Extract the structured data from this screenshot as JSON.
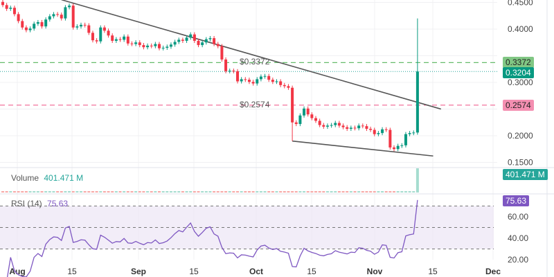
{
  "chart_data": {
    "type": "candlestick",
    "price_axis": {
      "ticks": [
        "0.4500",
        "0.4000",
        "0.3000",
        "0.2000",
        "0.1500"
      ],
      "range": [
        0.15,
        0.45
      ]
    },
    "time_axis": {
      "ticks": [
        "Aug",
        "15",
        "Sep",
        "15",
        "Oct",
        "15",
        "Nov",
        "15",
        "Dec"
      ]
    },
    "colors": {
      "up": "#089981",
      "down": "#f23645",
      "rsi": "#7e57c2",
      "trendline": "#555555"
    },
    "horizontal_lines": [
      {
        "label": "$0.3372",
        "value": 0.3372,
        "axis_label": "0.3372",
        "color": "#66bb6a",
        "style": "dashed"
      },
      {
        "label": "$0.2574",
        "value": 0.2574,
        "axis_label": "0.2574",
        "color": "#f06292",
        "style": "dashed"
      }
    ],
    "last_price": {
      "value": 0.3204,
      "axis_label": "0.3204",
      "color": "#089981"
    },
    "trendlines": [
      {
        "from": [
          "Aug 13",
          0.455
        ],
        "to": [
          "Nov 18",
          0.25
        ]
      },
      {
        "from": [
          "Oct 11",
          0.19
        ],
        "to": [
          "Nov 16",
          0.162
        ]
      }
    ],
    "candles": [
      [
        "Jul 29",
        0.445
      ],
      [
        "Jul 30",
        0.438
      ],
      [
        "Jul 31",
        0.44
      ],
      [
        "Aug 1",
        0.428
      ],
      [
        "Aug 2",
        0.415
      ],
      [
        "Aug 3",
        0.403
      ],
      [
        "Aug 4",
        0.398
      ],
      [
        "Aug 5",
        0.401
      ],
      [
        "Aug 6",
        0.41
      ],
      [
        "Aug 7",
        0.413
      ],
      [
        "Aug 8",
        0.405
      ],
      [
        "Aug 9",
        0.418
      ],
      [
        "Aug 10",
        0.424
      ],
      [
        "Aug 11",
        0.428
      ],
      [
        "Aug 12",
        0.427
      ],
      [
        "Aug 13",
        0.42
      ],
      [
        "Aug 14",
        0.441
      ],
      [
        "Aug 15",
        0.444
      ],
      [
        "Aug 16",
        0.403
      ],
      [
        "Aug 17",
        0.405
      ],
      [
        "Aug 18",
        0.408
      ],
      [
        "Aug 19",
        0.407
      ],
      [
        "Aug 20",
        0.393
      ],
      [
        "Aug 21",
        0.379
      ],
      [
        "Aug 22",
        0.377
      ],
      [
        "Aug 23",
        0.403
      ],
      [
        "Aug 24",
        0.397
      ],
      [
        "Aug 25",
        0.388
      ],
      [
        "Aug 26",
        0.378
      ],
      [
        "Aug 27",
        0.381
      ],
      [
        "Aug 28",
        0.38
      ],
      [
        "Aug 29",
        0.386
      ],
      [
        "Aug 30",
        0.373
      ],
      [
        "Aug 31",
        0.372
      ],
      [
        "Sep 1",
        0.375
      ],
      [
        "Sep 2",
        0.37
      ],
      [
        "Sep 3",
        0.366
      ],
      [
        "Sep 4",
        0.369
      ],
      [
        "Sep 5",
        0.368
      ],
      [
        "Sep 6",
        0.372
      ],
      [
        "Sep 7",
        0.364
      ],
      [
        "Sep 8",
        0.365
      ],
      [
        "Sep 9",
        0.367
      ],
      [
        "Sep 10",
        0.371
      ],
      [
        "Sep 11",
        0.376
      ],
      [
        "Sep 12",
        0.38
      ],
      [
        "Sep 13",
        0.378
      ],
      [
        "Sep 14",
        0.384
      ],
      [
        "Sep 15",
        0.39
      ],
      [
        "Sep 16",
        0.378
      ],
      [
        "Sep 17",
        0.37
      ],
      [
        "Sep 18",
        0.375
      ],
      [
        "Sep 19",
        0.381
      ],
      [
        "Sep 20",
        0.383
      ],
      [
        "Sep 21",
        0.372
      ],
      [
        "Sep 22",
        0.368
      ],
      [
        "Sep 23",
        0.343
      ],
      [
        "Sep 24",
        0.321
      ],
      [
        "Sep 25",
        0.322
      ],
      [
        "Sep 26",
        0.321
      ],
      [
        "Sep 27",
        0.302
      ],
      [
        "Sep 28",
        0.306
      ],
      [
        "Sep 29",
        0.305
      ],
      [
        "Sep 30",
        0.301
      ],
      [
        "Oct 1",
        0.298
      ],
      [
        "Oct 2",
        0.306
      ],
      [
        "Oct 3",
        0.311
      ],
      [
        "Oct 4",
        0.312
      ],
      [
        "Oct 5",
        0.305
      ],
      [
        "Oct 6",
        0.301
      ],
      [
        "Oct 7",
        0.302
      ],
      [
        "Oct 8",
        0.295
      ],
      [
        "Oct 9",
        0.293
      ],
      [
        "Oct 10",
        0.29
      ],
      [
        "Oct 11",
        0.225
      ],
      [
        "Oct 12",
        0.222
      ],
      [
        "Oct 13",
        0.238
      ],
      [
        "Oct 14",
        0.251
      ],
      [
        "Oct 15",
        0.24
      ],
      [
        "Oct 16",
        0.233
      ],
      [
        "Oct 17",
        0.228
      ],
      [
        "Oct 18",
        0.22
      ],
      [
        "Oct 19",
        0.217
      ],
      [
        "Oct 20",
        0.219
      ],
      [
        "Oct 21",
        0.22
      ],
      [
        "Oct 22",
        0.224
      ],
      [
        "Oct 23",
        0.219
      ],
      [
        "Oct 24",
        0.216
      ],
      [
        "Oct 25",
        0.213
      ],
      [
        "Oct 26",
        0.215
      ],
      [
        "Oct 27",
        0.214
      ],
      [
        "Oct 28",
        0.219
      ],
      [
        "Oct 29",
        0.218
      ],
      [
        "Oct 30",
        0.213
      ],
      [
        "Oct 31",
        0.211
      ],
      [
        "Nov 1",
        0.203
      ],
      [
        "Nov 2",
        0.205
      ],
      [
        "Nov 3",
        0.212
      ],
      [
        "Nov 4",
        0.211
      ],
      [
        "Nov 5",
        0.178
      ],
      [
        "Nov 6",
        0.175
      ],
      [
        "Nov 7",
        0.181
      ],
      [
        "Nov 8",
        0.182
      ],
      [
        "Nov 9",
        0.203
      ],
      [
        "Nov 10",
        0.205
      ],
      [
        "Nov 11",
        0.206
      ],
      [
        "Nov 12",
        0.3204
      ]
    ],
    "wick_extremes": {
      "Oct 11": {
        "low": 0.19
      },
      "Nov 12": {
        "high": 0.42
      }
    },
    "volume": {
      "label": "Volume",
      "value": "401.471 M",
      "axis_label": "401.471 M"
    },
    "rsi": {
      "label": "RSI (14)",
      "value": "75.63",
      "axis_label": "75.63",
      "ticks": [
        "60.00",
        "40.00",
        "20.00"
      ],
      "levels": [
        70,
        50,
        30
      ]
    }
  }
}
